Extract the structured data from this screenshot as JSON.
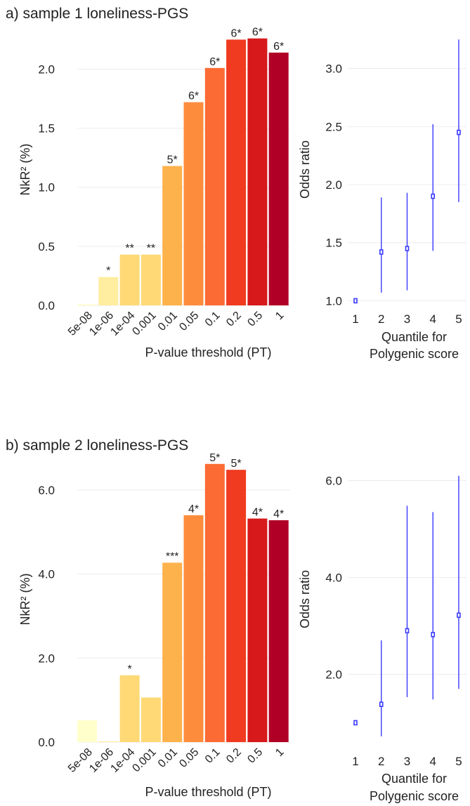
{
  "chart_data": [
    {
      "type": "bar",
      "panel": "a",
      "title": "a) sample 1 loneliness-PGS",
      "xlabel": "P-value threshold (PT)",
      "ylabel": "NkR² (%)",
      "ylim": [
        0,
        2.3
      ],
      "yticks": [
        0.0,
        0.5,
        1.0,
        1.5,
        2.0
      ],
      "ytick_labels": [
        "0.0",
        "0.5",
        "1.0",
        "1.5",
        "2.0"
      ],
      "categories": [
        "5e-08",
        "1e-06",
        "1e-04",
        "0.001",
        "0.01",
        "0.05",
        "0.1",
        "0.2",
        "0.5",
        "1"
      ],
      "values": [
        0.01,
        0.24,
        0.43,
        0.43,
        1.18,
        1.72,
        2.01,
        2.25,
        2.26,
        2.14
      ],
      "bar_labels": [
        "",
        "*",
        "**",
        "**",
        "5*",
        "6*",
        "6*",
        "6*",
        "6*",
        "6*"
      ],
      "colors": [
        "#ffffcc",
        "#ffeda0",
        "#fed976",
        "#fed976",
        "#feb24c",
        "#fd8d3c",
        "#fc6b33",
        "#f03b20",
        "#d7191c",
        "#b10026"
      ],
      "grid": true
    },
    {
      "type": "scatter",
      "panel": "a",
      "title": "",
      "xlabel": "Quantile for\nPolygenic score",
      "ylabel": "Odds ratio",
      "xlim": [
        0.7,
        5.3
      ],
      "ylim": [
        0.96,
        3.3
      ],
      "yticks": [
        1.0,
        1.5,
        2.0,
        2.5,
        3.0
      ],
      "ytick_labels": [
        "1.0",
        "1.5",
        "2.0",
        "2.5",
        "3.0"
      ],
      "xticks": [
        1,
        2,
        3,
        4,
        5
      ],
      "x": [
        1,
        2,
        3,
        4,
        5
      ],
      "y": [
        1.0,
        1.42,
        1.45,
        1.9,
        2.45
      ],
      "ci_low": [
        1.0,
        1.07,
        1.09,
        1.43,
        1.85
      ],
      "ci_high": [
        1.0,
        1.89,
        1.93,
        2.52,
        3.25
      ],
      "color": "#3a3aff",
      "grid": true
    },
    {
      "type": "bar",
      "panel": "b",
      "title": "b) sample 2 loneliness-PGS",
      "xlabel": "P-value threshold (PT)",
      "ylabel": "NkR² (%)",
      "ylim": [
        0,
        6.8
      ],
      "yticks": [
        0.0,
        2.0,
        4.0,
        6.0
      ],
      "ytick_labels": [
        "0.0",
        "2.0",
        "4.0",
        "6.0"
      ],
      "categories": [
        "5e-08",
        "1e-06",
        "1e-04",
        "0.001",
        "0.01",
        "0.05",
        "0.1",
        "0.2",
        "0.5",
        "1"
      ],
      "values": [
        0.52,
        0.02,
        1.59,
        1.06,
        4.27,
        5.4,
        6.62,
        6.48,
        5.32,
        5.28
      ],
      "bar_labels": [
        "",
        "",
        "*",
        "",
        "***",
        "4*",
        "5*",
        "5*",
        "4*",
        "4*"
      ],
      "colors": [
        "#ffffcc",
        "#ffeda0",
        "#fed976",
        "#fed976",
        "#feb24c",
        "#fd8d3c",
        "#fc6b33",
        "#f03b20",
        "#d7191c",
        "#b10026"
      ],
      "grid": true
    },
    {
      "type": "scatter",
      "panel": "b",
      "title": "",
      "xlabel": "Quantile for\nPolygenic score",
      "ylabel": "Odds ratio",
      "xlim": [
        0.7,
        5.3
      ],
      "ylim": [
        0.6,
        6.5
      ],
      "yticks": [
        2.0,
        4.0,
        6.0
      ],
      "ytick_labels": [
        "2.0",
        "4.0",
        "6.0"
      ],
      "xticks": [
        1,
        2,
        3,
        4,
        5
      ],
      "x": [
        1,
        2,
        3,
        4,
        5
      ],
      "y": [
        1.0,
        1.38,
        2.9,
        2.82,
        3.22
      ],
      "ci_low": [
        1.0,
        0.72,
        1.53,
        1.48,
        1.7
      ],
      "ci_high": [
        1.0,
        2.7,
        5.48,
        5.35,
        6.1
      ],
      "color": "#3a3aff",
      "grid": true
    }
  ]
}
